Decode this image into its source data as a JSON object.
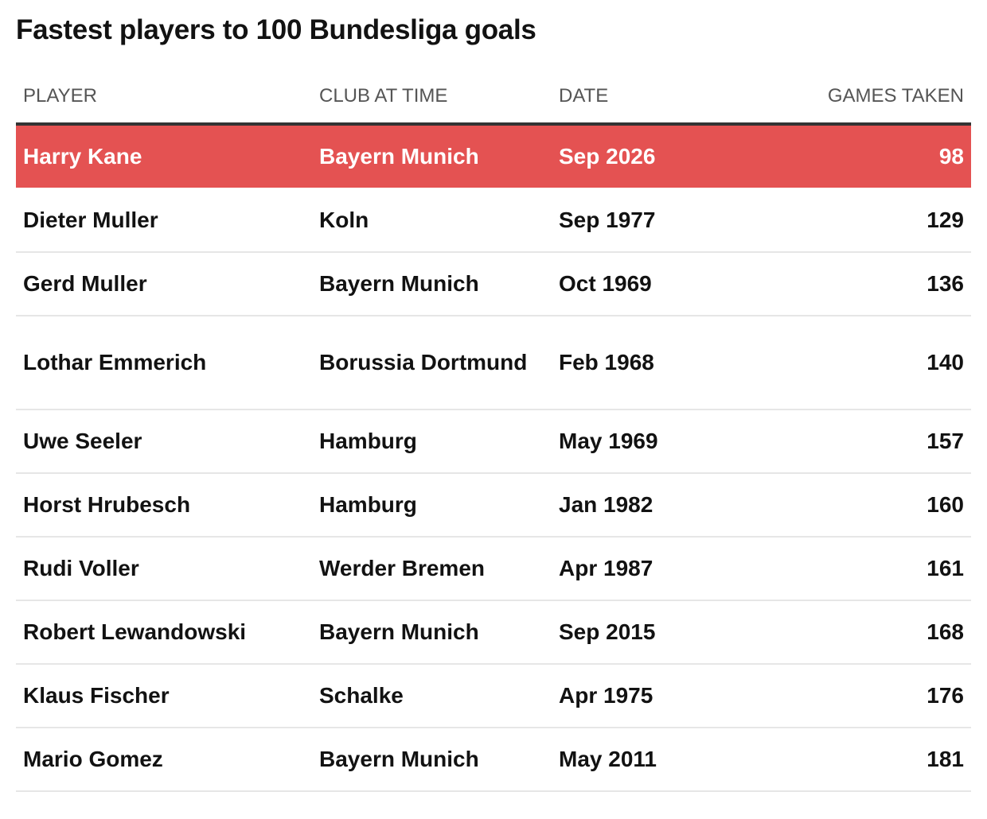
{
  "chart_data": {
    "type": "table",
    "title": "Fastest players to 100 Bundesliga goals",
    "columns": [
      "PLAYER",
      "CLUB AT TIME",
      "DATE",
      "GAMES TAKEN"
    ],
    "highlight_color": "#e45252",
    "rows": [
      {
        "player": "Harry Kane",
        "club": "Bayern Munich",
        "date": "Sep 2026",
        "games": 98,
        "highlight": true
      },
      {
        "player": "Dieter Muller",
        "club": "Koln",
        "date": "Sep 1977",
        "games": 129
      },
      {
        "player": "Gerd Muller",
        "club": "Bayern Munich",
        "date": "Oct 1969",
        "games": 136
      },
      {
        "player": "Lothar Emmerich",
        "club": "Borussia Dortmund",
        "date": "Feb 1968",
        "games": 140
      },
      {
        "player": "Uwe Seeler",
        "club": "Hamburg",
        "date": "May 1969",
        "games": 157
      },
      {
        "player": "Horst Hrubesch",
        "club": "Hamburg",
        "date": "Jan 1982",
        "games": 160
      },
      {
        "player": "Rudi Voller",
        "club": "Werder Bremen",
        "date": "Apr 1987",
        "games": 161
      },
      {
        "player": "Robert Lewandowski",
        "club": "Bayern Munich",
        "date": "Sep 2015",
        "games": 168
      },
      {
        "player": "Klaus Fischer",
        "club": "Schalke",
        "date": "Apr 1975",
        "games": 176
      },
      {
        "player": "Mario Gomez",
        "club": "Bayern Munich",
        "date": "May 2011",
        "games": 181
      }
    ]
  }
}
